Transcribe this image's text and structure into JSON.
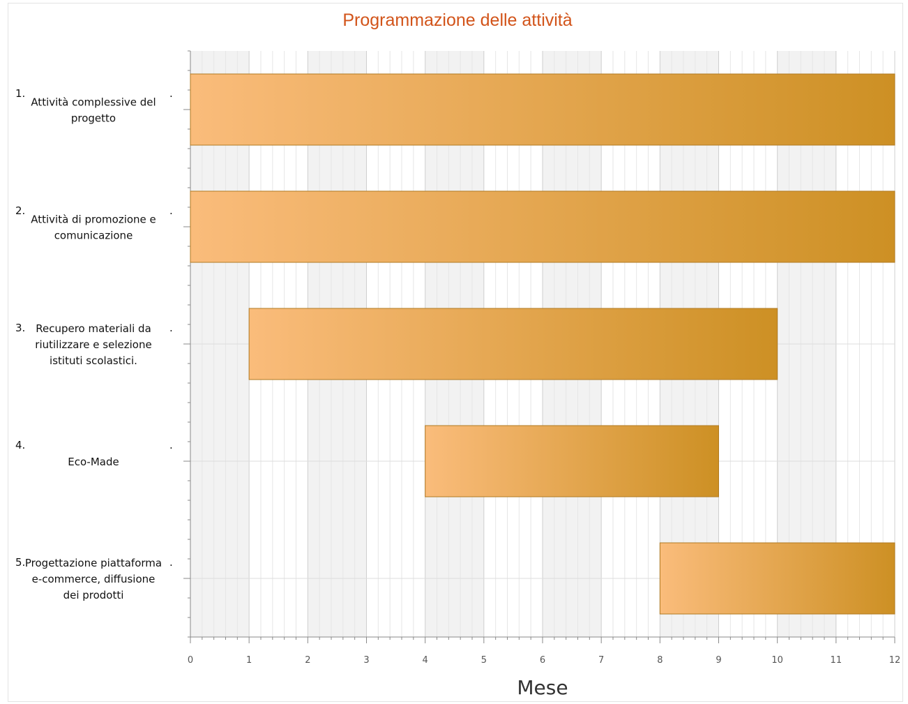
{
  "chart_data": {
    "type": "gantt",
    "title": "Programmazione delle attività",
    "xlabel": "Mese",
    "ylabel": "",
    "xlim": [
      0,
      12
    ],
    "xticks": [
      "0",
      "1",
      "2",
      "3",
      "4",
      "5",
      "6",
      "7",
      "8",
      "9",
      "10",
      "11",
      "12"
    ],
    "grid": true,
    "legend": "none",
    "bar_color_start": "#fabc7b",
    "bar_color_end": "#cd9024",
    "tasks": [
      {
        "number": "1.",
        "label_lines": [
          "Attività complessive del",
          "progetto"
        ],
        "start": 0,
        "end": 12
      },
      {
        "number": "2.",
        "label_lines": [
          "Attività di promozione e",
          "comunicazione"
        ],
        "start": 0,
        "end": 12
      },
      {
        "number": "3.",
        "label_lines": [
          "Recupero materiali da",
          "riutilizzare e selezione",
          "istituti scolastici."
        ],
        "start": 1,
        "end": 10
      },
      {
        "number": "4.",
        "label_lines": [
          "Eco-Made"
        ],
        "start": 4,
        "end": 9
      },
      {
        "number": "5.",
        "label_lines": [
          "Progettazione piattaforma",
          "e-commerce, diffusione",
          "dei prodotti"
        ],
        "start": 8,
        "end": 12
      }
    ]
  }
}
